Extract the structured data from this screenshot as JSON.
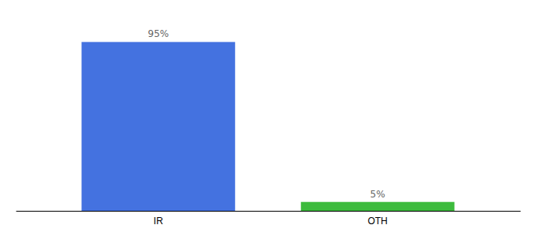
{
  "chart_data": {
    "type": "bar",
    "categories": [
      "IR",
      "OTH"
    ],
    "values": [
      95,
      5
    ],
    "colors": [
      "#4472e0",
      "#3dbb3d"
    ],
    "ylim": [
      0,
      108
    ],
    "tick_labels": "x",
    "data_labels": true,
    "value_labels": [
      "95%",
      "5%"
    ]
  }
}
